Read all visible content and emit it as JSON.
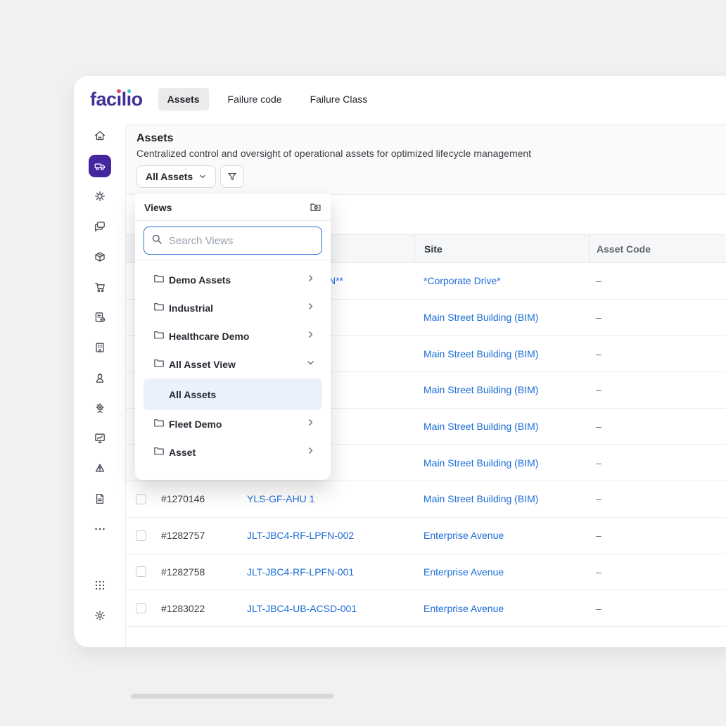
{
  "brand": {
    "name": "facilio"
  },
  "topnav": {
    "tabs": [
      {
        "label": "Assets",
        "active": true
      },
      {
        "label": "Failure code",
        "active": false
      },
      {
        "label": "Failure Class",
        "active": false
      }
    ]
  },
  "sidebar": {
    "icons": [
      "home",
      "asset-vehicle",
      "gear-wrench",
      "chat",
      "package",
      "cart",
      "document-check",
      "building",
      "worker",
      "gear-user",
      "monitor-chart",
      "pyramid",
      "document",
      "ellipsis",
      "grid",
      "gear"
    ]
  },
  "page_header": {
    "title": "Assets",
    "subtitle": "Centralized control and oversight of operational assets for optimized lifecycle management",
    "view_selector_label": "All Assets",
    "filter_icon": "funnel-icon"
  },
  "views_panel": {
    "title": "Views",
    "manage_icon": "folder-gear-icon",
    "search_placeholder": "Search Views",
    "items": [
      {
        "label": "Demo Assets",
        "type": "folder",
        "expanded": false
      },
      {
        "label": "Industrial",
        "type": "folder",
        "expanded": false
      },
      {
        "label": "Healthcare Demo",
        "type": "folder",
        "expanded": false
      },
      {
        "label": "All Asset View",
        "type": "folder",
        "expanded": true
      },
      {
        "label": "All Assets",
        "type": "view",
        "selected": true
      },
      {
        "label": "Fleet Demo",
        "type": "folder",
        "expanded": false
      },
      {
        "label": "Asset",
        "type": "folder",
        "expanded": false
      }
    ]
  },
  "table": {
    "columns": [
      "",
      "",
      "",
      "Site",
      "Asset Code"
    ],
    "rows": [
      {
        "id": "",
        "name": "N**",
        "site": "*Corporate Drive*",
        "asset_code": "–"
      },
      {
        "id": "",
        "name": "",
        "site": "Main Street Building (BIM)",
        "asset_code": "–"
      },
      {
        "id": "",
        "name": "",
        "site": "Main Street Building (BIM)",
        "asset_code": "–"
      },
      {
        "id": "",
        "name": "",
        "site": "Main Street Building (BIM)",
        "asset_code": "–"
      },
      {
        "id": "",
        "name": "",
        "site": "Main Street Building (BIM)",
        "asset_code": "–"
      },
      {
        "id": "",
        "name": "",
        "site": "Main Street Building (BIM)",
        "asset_code": "–"
      },
      {
        "id": "#1270146",
        "name": "YLS-GF-AHU 1",
        "site": "Main Street Building (BIM)",
        "asset_code": "–"
      },
      {
        "id": "#1282757",
        "name": "JLT-JBC4-RF-LPFN-002",
        "site": "Enterprise Avenue",
        "asset_code": "–"
      },
      {
        "id": "#1282758",
        "name": "JLT-JBC4-RF-LPFN-001",
        "site": "Enterprise Avenue",
        "asset_code": "–"
      },
      {
        "id": "#1283022",
        "name": "JLT-JBC4-UB-ACSD-001",
        "site": "Enterprise Avenue",
        "asset_code": "–"
      }
    ]
  },
  "colors": {
    "accent_purple": "#45269f",
    "link_blue": "#1a6cd6",
    "logo_indigo": "#403296",
    "logo_dot_pink": "#e5446d",
    "logo_dot_teal": "#35c3cf",
    "selected_view_bg": "#eaf1fb",
    "search_focus_border": "#2e6fd6"
  }
}
